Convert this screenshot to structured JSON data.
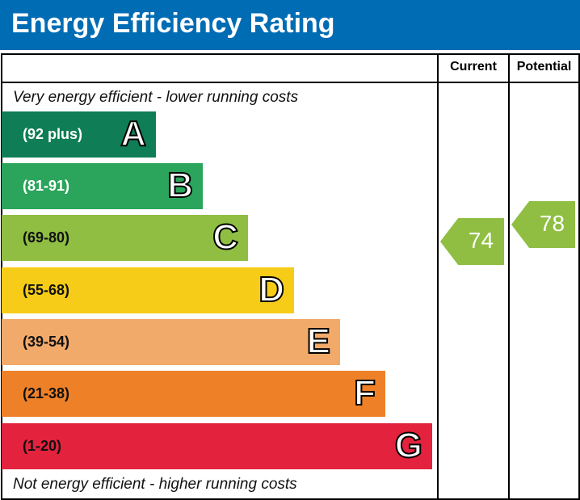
{
  "title": "Energy Efficiency Rating",
  "columns": {
    "current": "Current",
    "potential": "Potential"
  },
  "top_note": "Very energy efficient - lower running costs",
  "bottom_note": "Not energy efficient - higher running costs",
  "chart_data": {
    "type": "bar",
    "bands": [
      {
        "letter": "A",
        "range": "(92 plus)",
        "color": "#0f7d55"
      },
      {
        "letter": "B",
        "range": "(81-91)",
        "color": "#2aa55b"
      },
      {
        "letter": "C",
        "range": "(69-80)",
        "color": "#8fbe43"
      },
      {
        "letter": "D",
        "range": "(55-68)",
        "color": "#f6cc18"
      },
      {
        "letter": "E",
        "range": "(39-54)",
        "color": "#f2aa6b"
      },
      {
        "letter": "F",
        "range": "(21-38)",
        "color": "#ee8128"
      },
      {
        "letter": "G",
        "range": "(1-20)",
        "color": "#e3223d"
      }
    ],
    "current": {
      "value": 74,
      "band": "C",
      "color": "#8fbe43"
    },
    "potential": {
      "value": 78,
      "band": "C",
      "color": "#8fbe43"
    }
  },
  "header_color": "#006cb4"
}
